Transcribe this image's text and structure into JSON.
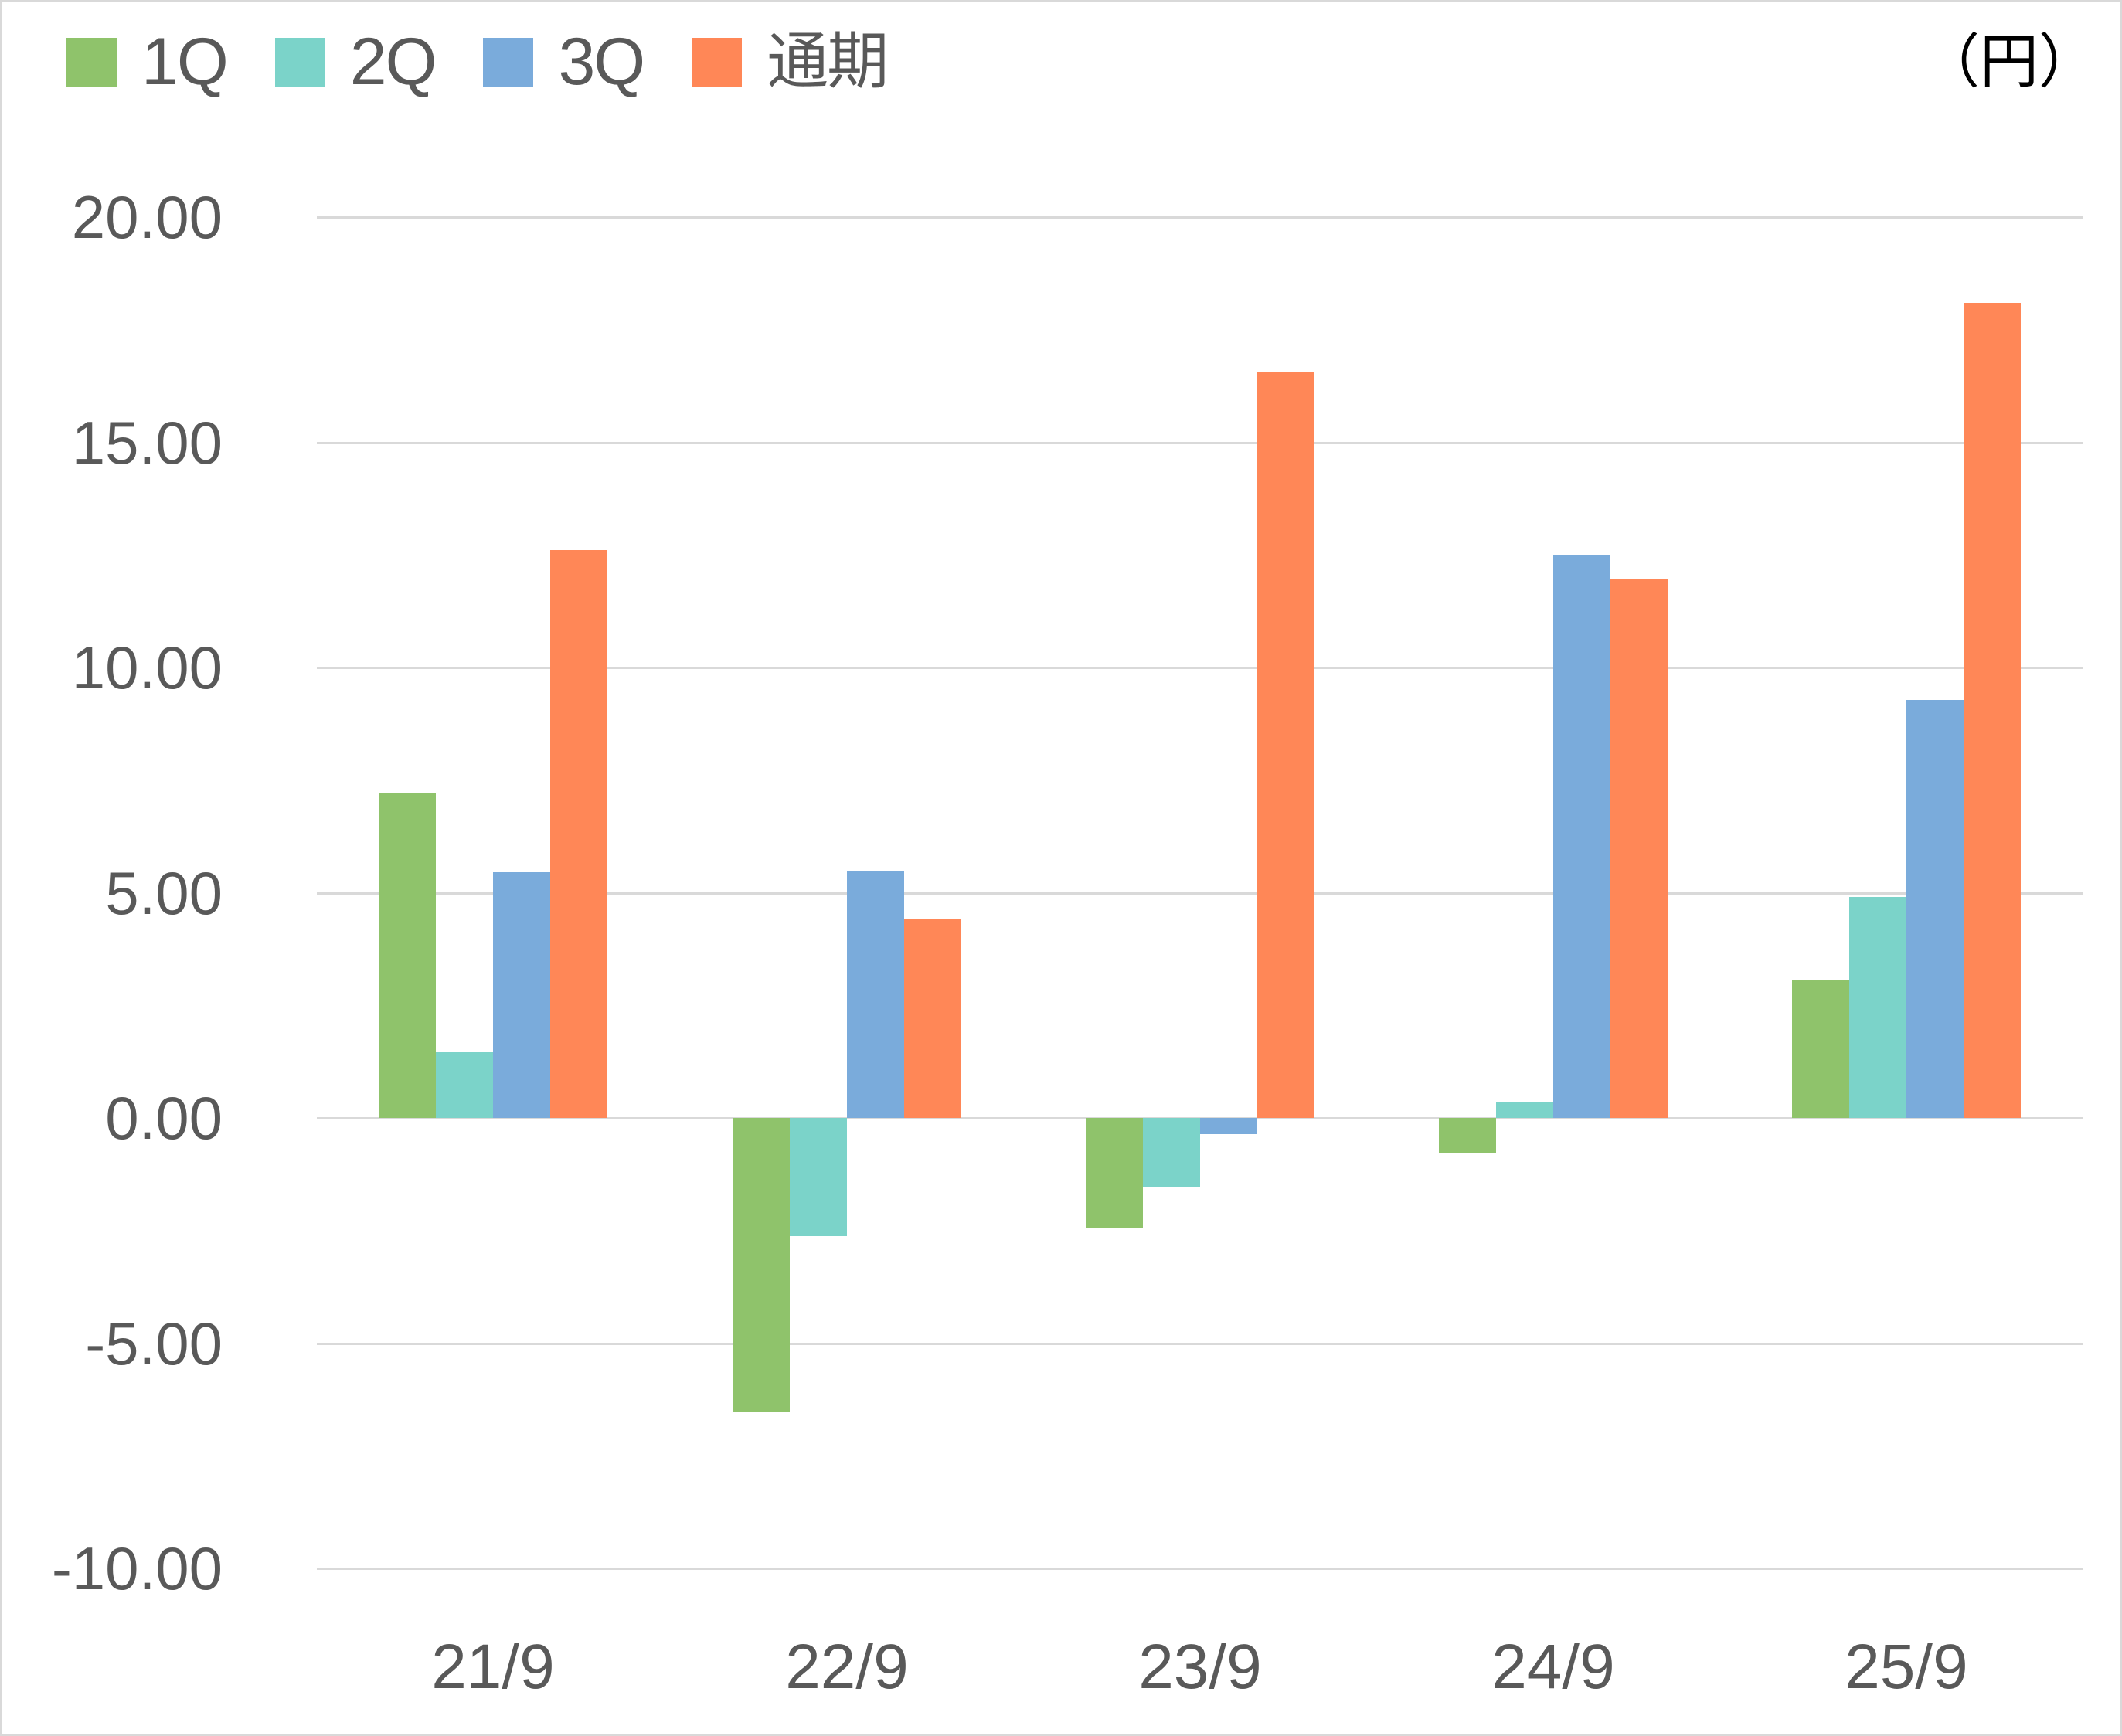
{
  "legend": [
    {
      "label": "1Q",
      "color": "#8fc36b"
    },
    {
      "label": "2Q",
      "color": "#7bd3c9"
    },
    {
      "label": "3Q",
      "color": "#7aabdb"
    },
    {
      "label": "通期",
      "color": "#ff8757"
    }
  ],
  "unit_label": "（円）",
  "y_axis": {
    "ticks": [
      "20.00",
      "15.00",
      "10.00",
      "5.00",
      "0.00",
      "-5.00",
      "-10.00"
    ]
  },
  "x_axis": {
    "categories": [
      "21/9",
      "22/9",
      "23/9",
      "24/9",
      "25/9"
    ]
  },
  "chart_data": {
    "type": "bar",
    "title": "",
    "xlabel": "",
    "ylabel": "（円）",
    "categories": [
      "21/9",
      "22/9",
      "23/9",
      "24/9",
      "25/9"
    ],
    "series": [
      {
        "name": "1Q",
        "color": "#8fc36b",
        "values": [
          7.22,
          -6.52,
          -2.45,
          -0.77,
          3.06
        ]
      },
      {
        "name": "2Q",
        "color": "#7bd3c9",
        "values": [
          1.45,
          -2.62,
          -1.54,
          0.36,
          4.9
        ]
      },
      {
        "name": "3Q",
        "color": "#7aabdb",
        "values": [
          5.46,
          5.47,
          -0.36,
          12.51,
          9.28
        ]
      },
      {
        "name": "通期",
        "color": "#ff8757",
        "values": [
          12.61,
          4.43,
          16.57,
          11.96,
          18.1
        ]
      }
    ],
    "ylim": [
      -10,
      20
    ],
    "ytick_step": 5,
    "grid": true,
    "legend_position": "top-left"
  }
}
